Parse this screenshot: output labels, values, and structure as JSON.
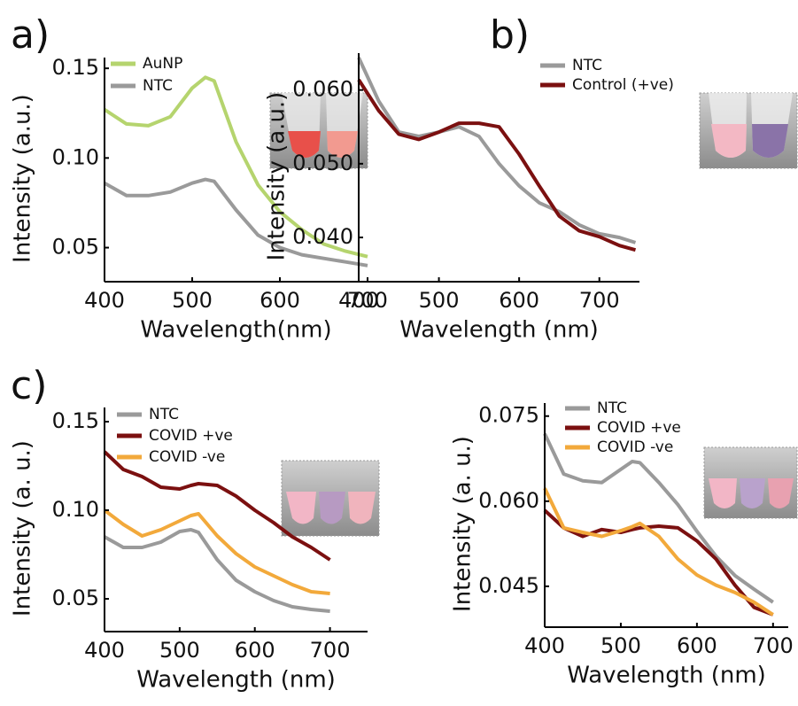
{
  "chart_data": [
    {
      "type": "line",
      "panel_label": "a)",
      "xlabel": "Wavelength(nm)",
      "ylabel": "Intensity (a.u.)",
      "xlim": [
        400,
        700
      ],
      "xticks": [
        400,
        500,
        600,
        700
      ],
      "ylim": [
        0.031,
        0.156
      ],
      "yticks": [
        0.05,
        {
          "value": 0.1,
          "label": "0.10"
        },
        0.15
      ],
      "x": [
        400,
        425,
        450,
        475,
        500,
        515,
        525,
        550,
        575,
        600,
        625,
        650,
        675,
        700
      ],
      "series": [
        {
          "name": "AuNP",
          "color": "#b5d46e",
          "values": [
            0.127,
            0.119,
            0.118,
            0.123,
            0.139,
            0.145,
            0.143,
            0.109,
            0.085,
            0.07,
            0.06,
            0.052,
            0.048,
            0.045
          ]
        },
        {
          "name": "NTC",
          "color": "#9a9a9a",
          "values": [
            0.086,
            0.079,
            0.079,
            0.081,
            0.086,
            0.088,
            0.087,
            0.071,
            0.057,
            0.05,
            0.046,
            0.044,
            0.042,
            0.04
          ]
        }
      ]
    },
    {
      "type": "line",
      "panel_label": "b)",
      "xlabel": "Wavelength (nm)",
      "ylabel": "Intensity (a.u.)",
      "xlim": [
        400,
        750
      ],
      "xticks": [
        400,
        500,
        600,
        700
      ],
      "ylim": [
        0.034,
        0.065
      ],
      "yticks": [
        {
          "value": 0.04,
          "label": "0.040"
        },
        {
          "value": 0.05,
          "label": "0.050"
        },
        {
          "value": 0.06,
          "label": "0.060"
        }
      ],
      "x": [
        400,
        425,
        450,
        475,
        500,
        525,
        550,
        575,
        600,
        625,
        650,
        675,
        700,
        725,
        745
      ],
      "series": [
        {
          "name": "NTC",
          "color": "#9a9a9a",
          "values": [
            0.0644,
            0.0585,
            0.0543,
            0.0537,
            0.0543,
            0.055,
            0.0537,
            0.05,
            0.047,
            0.0447,
            0.0435,
            0.0417,
            0.0405,
            0.04,
            0.0393
          ]
        },
        {
          "name": "Control (+ve)",
          "color": "#7b1010",
          "values": [
            0.0614,
            0.0572,
            0.054,
            0.0533,
            0.0543,
            0.0555,
            0.0555,
            0.055,
            0.0513,
            0.047,
            0.0429,
            0.0409,
            0.0401,
            0.0389,
            0.0383
          ]
        }
      ]
    },
    {
      "type": "line",
      "panel_label": "c)",
      "xlabel": "Wavelength (nm)",
      "ylabel": "Intensity (a. u.)",
      "xlim": [
        400,
        750
      ],
      "xticks": [
        400,
        500,
        600,
        700
      ],
      "ylim": [
        0.0315,
        0.158
      ],
      "yticks": [
        0.05,
        {
          "value": 0.1,
          "label": "0.10"
        },
        0.15
      ],
      "x": [
        400,
        425,
        450,
        475,
        500,
        515,
        525,
        550,
        575,
        600,
        625,
        650,
        675,
        700
      ],
      "series": [
        {
          "name": "NTC",
          "color": "#9a9a9a",
          "values": [
            0.085,
            0.079,
            0.079,
            0.082,
            0.088,
            0.089,
            0.0875,
            0.072,
            0.0605,
            0.054,
            0.049,
            0.0455,
            0.044,
            0.043
          ]
        },
        {
          "name": "COVID +ve",
          "color": "#7b1010",
          "values": [
            0.133,
            0.123,
            0.119,
            0.113,
            0.112,
            0.114,
            0.115,
            0.114,
            0.108,
            0.1,
            0.093,
            0.085,
            0.079,
            0.072
          ]
        },
        {
          "name": "COVID -ve",
          "color": "#f2a93b",
          "values": [
            0.1,
            0.092,
            0.0855,
            0.089,
            0.094,
            0.097,
            0.098,
            0.0855,
            0.0755,
            0.068,
            0.063,
            0.058,
            0.054,
            0.053
          ]
        }
      ]
    },
    {
      "type": "line",
      "xlabel": "Wavelength (nm)",
      "ylabel": "Intensity (a. u.)",
      "xlim": [
        400,
        720
      ],
      "xticks": [
        400,
        500,
        600,
        700
      ],
      "ylim": [
        0.0378,
        0.0773
      ],
      "yticks": [
        0.045,
        {
          "value": 0.06,
          "label": "0.060"
        },
        0.075
      ],
      "x": [
        400,
        425,
        450,
        475,
        500,
        515,
        525,
        550,
        575,
        600,
        625,
        650,
        675,
        700
      ],
      "series": [
        {
          "name": "NTC",
          "color": "#9a9a9a",
          "values": [
            0.0719,
            0.0648,
            0.0636,
            0.0633,
            0.0656,
            0.067,
            0.0668,
            0.0633,
            0.0594,
            0.0547,
            0.0503,
            0.0469,
            0.0445,
            0.0422
          ]
        },
        {
          "name": "COVID +ve",
          "color": "#7b1010",
          "values": [
            0.0584,
            0.0553,
            0.0538,
            0.055,
            0.0545,
            0.055,
            0.0553,
            0.0556,
            0.0553,
            0.053,
            0.0498,
            0.0452,
            0.0413,
            0.04
          ]
        },
        {
          "name": "COVID -ve",
          "color": "#f2a93b",
          "values": [
            0.0623,
            0.0553,
            0.0545,
            0.0538,
            0.0548,
            0.0555,
            0.0561,
            0.0538,
            0.0498,
            0.047,
            0.0452,
            0.0439,
            0.0422,
            0.04
          ]
        }
      ]
    }
  ]
}
